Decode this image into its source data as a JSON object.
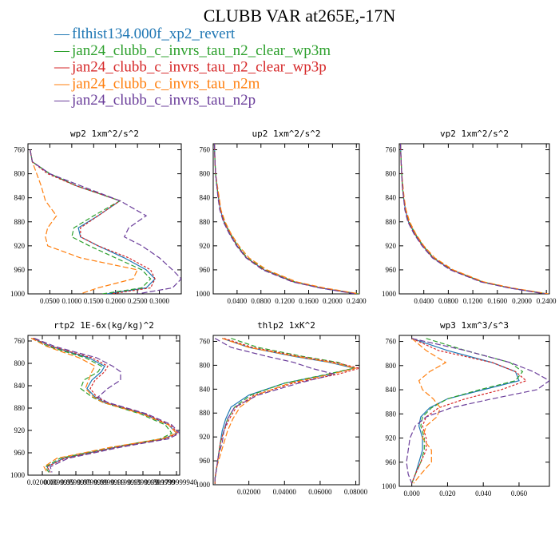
{
  "figure": {
    "title": "CLUBB VAR at265E,-17N",
    "legend": [
      {
        "name": "flthist134.000f_xp2_revert",
        "color": "#1f77b4"
      },
      {
        "name": "jan24_clubb_c_invrs_tau_n2_clear_wp3m",
        "color": "#2ca02c"
      },
      {
        "name": "jan24_clubb_c_invrs_tau_n2_clear_wp3p",
        "color": "#d62728"
      },
      {
        "name": "jan24_clubb_c_invrs_tau_n2m",
        "color": "#ff7f0e"
      },
      {
        "name": "jan24_clubb_c_invrs_tau_n2p",
        "color": "#6a3d9a"
      }
    ]
  },
  "chart_data": [
    {
      "type": "line",
      "title": "wp2   1xm^2/s^2",
      "xlim": [
        0,
        0.35
      ],
      "ylim": [
        1000,
        750
      ],
      "xticks": [
        "0.0500",
        "0.1000",
        "0.1500",
        "0.2000",
        "0.2500",
        "0.3000"
      ],
      "yticks": [
        "760",
        "800",
        "840",
        "880",
        "920",
        "960",
        "1000"
      ],
      "y": [
        760,
        780,
        800,
        820,
        845,
        870,
        890,
        905,
        920,
        940,
        960,
        975,
        990,
        1000
      ],
      "series": [
        {
          "color": "#1f77b4",
          "values": [
            0.005,
            0.01,
            0.05,
            0.11,
            0.21,
            0.16,
            0.115,
            0.12,
            0.16,
            0.22,
            0.27,
            0.29,
            0.27,
            0.18
          ]
        },
        {
          "color": "#2ca02c",
          "values": [
            0.005,
            0.01,
            0.05,
            0.11,
            0.21,
            0.15,
            0.105,
            0.1,
            0.14,
            0.2,
            0.26,
            0.28,
            0.26,
            0.17
          ]
        },
        {
          "color": "#d62728",
          "values": [
            0.005,
            0.01,
            0.045,
            0.11,
            0.21,
            0.16,
            0.12,
            0.12,
            0.16,
            0.23,
            0.28,
            0.29,
            0.28,
            0.19
          ]
        },
        {
          "color": "#ff7f0e",
          "values": [
            0.005,
            0.01,
            0.02,
            0.03,
            0.04,
            0.065,
            0.045,
            0.04,
            0.045,
            0.12,
            0.25,
            0.24,
            0.16,
            0.12
          ]
        },
        {
          "color": "#6a3d9a",
          "values": [
            0.005,
            0.01,
            0.05,
            0.12,
            0.21,
            0.27,
            0.23,
            0.22,
            0.26,
            0.3,
            0.33,
            0.35,
            0.33,
            0.25
          ]
        }
      ]
    },
    {
      "type": "line",
      "title": "up2   1xm^2/s^2",
      "xlim": [
        0,
        0.245
      ],
      "ylim": [
        1000,
        750
      ],
      "xticks": [
        "0.0400",
        "0.0800",
        "0.1200",
        "0.1600",
        "0.2000",
        "0.2400"
      ],
      "yticks": [
        "760",
        "800",
        "840",
        "880",
        "920",
        "960",
        "1000"
      ],
      "y": [
        750,
        780,
        800,
        820,
        840,
        860,
        880,
        900,
        920,
        940,
        960,
        980,
        990,
        1000
      ],
      "series": [
        {
          "color": "#1f77b4",
          "values": [
            0.002,
            0.003,
            0.004,
            0.006,
            0.009,
            0.012,
            0.018,
            0.028,
            0.04,
            0.056,
            0.085,
            0.135,
            0.18,
            0.24
          ]
        },
        {
          "color": "#2ca02c",
          "values": [
            0.002,
            0.003,
            0.004,
            0.006,
            0.009,
            0.012,
            0.019,
            0.029,
            0.041,
            0.057,
            0.087,
            0.137,
            0.182,
            0.243
          ]
        },
        {
          "color": "#d62728",
          "values": [
            0.002,
            0.003,
            0.004,
            0.006,
            0.009,
            0.012,
            0.018,
            0.028,
            0.04,
            0.056,
            0.085,
            0.135,
            0.18,
            0.24
          ]
        },
        {
          "color": "#ff7f0e",
          "values": [
            0.002,
            0.003,
            0.004,
            0.007,
            0.01,
            0.013,
            0.02,
            0.03,
            0.043,
            0.06,
            0.09,
            0.14,
            0.186,
            0.245
          ]
        },
        {
          "color": "#6a3d9a",
          "values": [
            0.002,
            0.003,
            0.004,
            0.006,
            0.008,
            0.011,
            0.017,
            0.027,
            0.039,
            0.055,
            0.083,
            0.133,
            0.178,
            0.238
          ]
        }
      ]
    },
    {
      "type": "line",
      "title": "vp2   1xm^2/s^2",
      "xlim": [
        0,
        0.245
      ],
      "ylim": [
        1000,
        750
      ],
      "xticks": [
        "0.0400",
        "0.0800",
        "0.1200",
        "0.1600",
        "0.2000",
        "0.2400"
      ],
      "yticks": [
        "760",
        "800",
        "840",
        "880",
        "920",
        "960",
        "1000"
      ],
      "y": [
        750,
        780,
        800,
        820,
        840,
        860,
        880,
        900,
        920,
        940,
        960,
        980,
        990,
        1000
      ],
      "series": [
        {
          "color": "#1f77b4",
          "values": [
            0.002,
            0.003,
            0.004,
            0.005,
            0.007,
            0.01,
            0.015,
            0.025,
            0.038,
            0.055,
            0.085,
            0.135,
            0.18,
            0.24
          ]
        },
        {
          "color": "#2ca02c",
          "values": [
            0.002,
            0.003,
            0.004,
            0.005,
            0.007,
            0.01,
            0.016,
            0.026,
            0.039,
            0.056,
            0.086,
            0.136,
            0.181,
            0.241
          ]
        },
        {
          "color": "#d62728",
          "values": [
            0.002,
            0.003,
            0.004,
            0.005,
            0.007,
            0.01,
            0.015,
            0.025,
            0.038,
            0.055,
            0.085,
            0.135,
            0.18,
            0.24
          ]
        },
        {
          "color": "#ff7f0e",
          "values": [
            0.002,
            0.003,
            0.004,
            0.006,
            0.008,
            0.011,
            0.017,
            0.027,
            0.04,
            0.058,
            0.088,
            0.138,
            0.184,
            0.243
          ]
        },
        {
          "color": "#6a3d9a",
          "values": [
            0.002,
            0.003,
            0.004,
            0.005,
            0.007,
            0.009,
            0.014,
            0.024,
            0.037,
            0.054,
            0.083,
            0.133,
            0.178,
            0.238
          ]
        }
      ]
    },
    {
      "type": "line",
      "title": "rtp2   1E-6x(kg/kg)^2",
      "xlim": [
        0,
        0.95
      ],
      "ylim": [
        1000,
        750
      ],
      "xticks": [
        "0.0200000",
        "0.0399999",
        "0.0599999",
        "0.0799999",
        "0.0999999",
        "0.1199999",
        "0.1399999",
        "0.1599999",
        "0.1799999940"
      ],
      "yticks": [
        "760",
        "800",
        "840",
        "880",
        "920",
        "960",
        "1000"
      ],
      "y": [
        755,
        770,
        790,
        805,
        815,
        830,
        845,
        860,
        870,
        890,
        910,
        925,
        935,
        950,
        970,
        985,
        995
      ],
      "series": [
        {
          "color": "#1f77b4",
          "values": [
            0.03,
            0.15,
            0.38,
            0.48,
            0.46,
            0.4,
            0.37,
            0.42,
            0.48,
            0.72,
            0.88,
            0.93,
            0.85,
            0.55,
            0.22,
            0.12,
            0.14
          ]
        },
        {
          "color": "#2ca02c",
          "values": [
            0.02,
            0.13,
            0.36,
            0.46,
            0.44,
            0.35,
            0.33,
            0.4,
            0.47,
            0.7,
            0.86,
            0.9,
            0.83,
            0.53,
            0.2,
            0.11,
            0.13
          ]
        },
        {
          "color": "#d62728",
          "values": [
            0.03,
            0.15,
            0.4,
            0.5,
            0.48,
            0.42,
            0.39,
            0.43,
            0.49,
            0.73,
            0.89,
            0.94,
            0.86,
            0.56,
            0.23,
            0.12,
            0.14
          ]
        },
        {
          "color": "#ff7f0e",
          "values": [
            0.02,
            0.12,
            0.32,
            0.42,
            0.4,
            0.38,
            0.36,
            0.41,
            0.47,
            0.71,
            0.88,
            0.93,
            0.84,
            0.52,
            0.18,
            0.1,
            0.12
          ]
        },
        {
          "color": "#6a3d9a",
          "values": [
            0.04,
            0.17,
            0.43,
            0.53,
            0.58,
            0.58,
            0.5,
            0.44,
            0.5,
            0.74,
            0.9,
            0.95,
            0.88,
            0.58,
            0.25,
            0.14,
            0.15
          ]
        }
      ]
    },
    {
      "type": "line",
      "title": "thlp2   1xK^2",
      "xlim": [
        0,
        0.082
      ],
      "ylim": [
        1000,
        750
      ],
      "xticks": [
        "0.02000",
        "0.04000",
        "0.06000",
        "0.08000"
      ],
      "yticks": [
        "760",
        "800",
        "840",
        "880",
        "920",
        "960",
        "1000"
      ],
      "y": [
        755,
        770,
        785,
        795,
        805,
        815,
        830,
        850,
        870,
        890,
        910,
        930,
        950,
        970,
        990,
        1000
      ],
      "series": [
        {
          "color": "#1f77b4",
          "values": [
            0.005,
            0.02,
            0.045,
            0.065,
            0.079,
            0.065,
            0.04,
            0.02,
            0.01,
            0.007,
            0.005,
            0.004,
            0.003,
            0.002,
            0.001,
            0.001
          ]
        },
        {
          "color": "#2ca02c",
          "values": [
            0.01,
            0.025,
            0.05,
            0.07,
            0.079,
            0.064,
            0.04,
            0.021,
            0.012,
            0.008,
            0.006,
            0.004,
            0.003,
            0.002,
            0.001,
            0.001
          ]
        },
        {
          "color": "#d62728",
          "values": [
            0.006,
            0.022,
            0.048,
            0.068,
            0.082,
            0.07,
            0.045,
            0.023,
            0.013,
            0.009,
            0.006,
            0.004,
            0.003,
            0.002,
            0.001,
            0.001
          ]
        },
        {
          "color": "#ff7f0e",
          "values": [
            0.005,
            0.02,
            0.046,
            0.066,
            0.08,
            0.066,
            0.043,
            0.024,
            0.015,
            0.011,
            0.008,
            0.006,
            0.004,
            0.002,
            0.001,
            0.001
          ]
        },
        {
          "color": "#6a3d9a",
          "values": [
            0.001,
            0.01,
            0.03,
            0.045,
            0.055,
            0.068,
            0.048,
            0.025,
            0.012,
            0.008,
            0.006,
            0.005,
            0.003,
            0.002,
            0.001,
            0.001
          ]
        }
      ]
    },
    {
      "type": "line",
      "title": "wp3   1xm^3/s^3",
      "xlim": [
        -0.007,
        0.077
      ],
      "ylim": [
        1000,
        750
      ],
      "xticks": [
        "0.000",
        "0.020",
        "0.040",
        "0.060"
      ],
      "yticks": [
        "760",
        "800",
        "840",
        "880",
        "920",
        "960",
        "1000"
      ],
      "y": [
        755,
        775,
        795,
        810,
        825,
        840,
        855,
        870,
        885,
        900,
        920,
        940,
        960,
        980,
        995
      ],
      "series": [
        {
          "color": "#1f77b4",
          "values": [
            0.0,
            0.02,
            0.045,
            0.058,
            0.06,
            0.04,
            0.02,
            0.01,
            0.005,
            0.004,
            0.006,
            0.006,
            0.004,
            0.002,
            0.0
          ]
        },
        {
          "color": "#2ca02c",
          "values": [
            0.008,
            0.03,
            0.055,
            0.062,
            0.058,
            0.038,
            0.02,
            0.011,
            0.006,
            0.005,
            0.007,
            0.007,
            0.005,
            0.002,
            0.0
          ]
        },
        {
          "color": "#d62728",
          "values": [
            0.0,
            0.015,
            0.045,
            0.058,
            0.064,
            0.05,
            0.03,
            0.015,
            0.008,
            0.006,
            0.008,
            0.008,
            0.005,
            0.002,
            0.0
          ]
        },
        {
          "color": "#ff7f0e",
          "values": [
            0.0,
            0.008,
            0.019,
            0.01,
            0.004,
            0.006,
            0.012,
            0.016,
            0.014,
            0.008,
            0.006,
            0.011,
            0.011,
            0.005,
            0.001
          ]
        },
        {
          "color": "#6a3d9a",
          "values": [
            0.0,
            0.03,
            0.055,
            0.068,
            0.077,
            0.07,
            0.045,
            0.022,
            0.008,
            0.002,
            -0.001,
            -0.002,
            -0.003,
            -0.002,
            0.0
          ]
        }
      ]
    }
  ]
}
